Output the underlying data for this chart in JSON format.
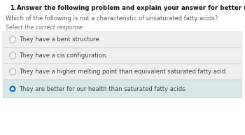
{
  "header_number": "1.",
  "header_text": "Answer the following problem and explain your answer for better understanding",
  "question": "Which of the following is not a characteristic of unsaturated fatty acids?",
  "instruction": "Select the correct response:",
  "options": [
    "They have a bent structure.",
    "They have a cis configuration.",
    "They have a higher melting point than equivalent saturated fatty acid.",
    "They are better for our health than saturated fatty acids."
  ],
  "correct_index": 3,
  "bg_color": "#ffffff",
  "option_box_color": "#efefef",
  "selected_box_color": "#d6e8e8",
  "header_color": "#111111",
  "question_color": "#555555",
  "instruction_color": "#666666",
  "option_text_color": "#444444",
  "radio_unselected_edge": "#bbbbbb",
  "radio_selected_color": "#1a6faf",
  "header_fontsize": 6.2,
  "question_fontsize": 6.0,
  "instruction_fontsize": 5.8,
  "option_fontsize": 6.0,
  "fig_width": 3.5,
  "fig_height": 1.93,
  "dpi": 100
}
